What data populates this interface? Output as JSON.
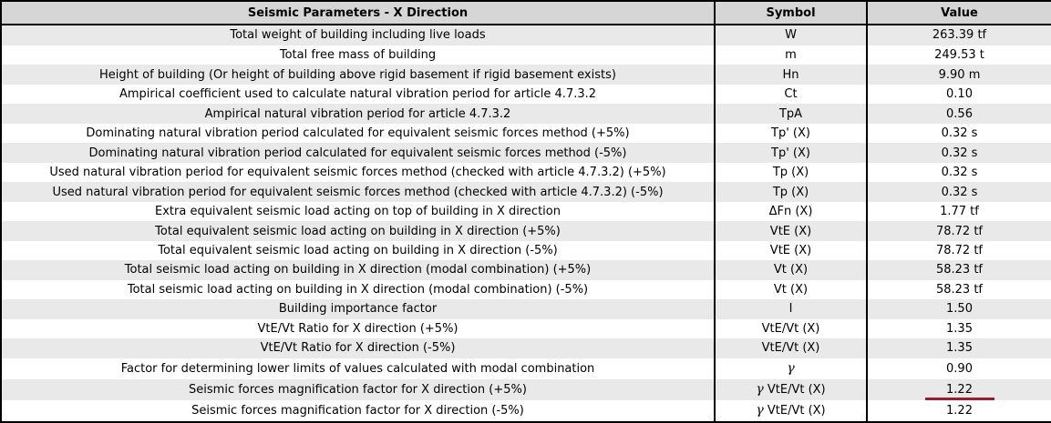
{
  "table": {
    "header": {
      "parameter": "Seismic Parameters - X Direction",
      "symbol": "Symbol",
      "value": "Value"
    },
    "rows": [
      {
        "parameter": "Total weight of building including live loads",
        "symbol": "W",
        "value": "263.39 tf",
        "value_underlined": false
      },
      {
        "parameter": "Total free mass of building",
        "symbol": "m",
        "value": "249.53 t",
        "value_underlined": false
      },
      {
        "parameter": "Height of building (Or height of building above rigid basement if rigid basement exists)",
        "symbol": "Hn",
        "value": "9.90 m",
        "value_underlined": false
      },
      {
        "parameter": "Ampirical coefficient used to calculate natural vibration period for article 4.7.3.2",
        "symbol": "Ct",
        "value": "0.10",
        "value_underlined": false
      },
      {
        "parameter": "Ampirical natural vibration period for article 4.7.3.2",
        "symbol": "TpA",
        "value": "0.56",
        "value_underlined": false
      },
      {
        "parameter": "Dominating natural vibration period calculated for equivalent seismic forces method (+5%)",
        "symbol": "Tp' (X)",
        "value": "0.32 s",
        "value_underlined": false
      },
      {
        "parameter": "Dominating natural vibration period calculated for equivalent seismic forces method (-5%)",
        "symbol": "Tp' (X)",
        "value": "0.32 s",
        "value_underlined": false
      },
      {
        "parameter": "Used natural vibration period for equivalent seismic forces method (checked with article 4.7.3.2) (+5%)",
        "symbol": "Tp (X)",
        "value": "0.32 s",
        "value_underlined": false
      },
      {
        "parameter": "Used natural vibration period for equivalent seismic forces method (checked with article 4.7.3.2) (-5%)",
        "symbol": "Tp (X)",
        "value": "0.32 s",
        "value_underlined": false
      },
      {
        "parameter": "Extra equivalent seismic load acting on top of building in X direction",
        "symbol": "ΔFn (X)",
        "value": "1.77 tf",
        "value_underlined": false
      },
      {
        "parameter": "Total equivalent seismic load acting on building in X direction (+5%)",
        "symbol": "VtE (X)",
        "value": "78.72 tf",
        "value_underlined": false
      },
      {
        "parameter": "Total equivalent seismic load acting on building in X direction (-5%)",
        "symbol": "VtE (X)",
        "value": "78.72 tf",
        "value_underlined": false
      },
      {
        "parameter": "Total seismic load acting on building in X direction (modal combination) (+5%)",
        "symbol": "Vt (X)",
        "value": "58.23 tf",
        "value_underlined": false
      },
      {
        "parameter": "Total seismic load acting on building in X direction (modal combination) (-5%)",
        "symbol": "Vt (X)",
        "value": "58.23 tf",
        "value_underlined": false
      },
      {
        "parameter": "Building importance factor",
        "symbol": "I",
        "value": "1.50",
        "value_underlined": false
      },
      {
        "parameter": "VtE/Vt Ratio for X direction (+5%)",
        "symbol": "VtE/Vt (X)",
        "value": "1.35",
        "value_underlined": false
      },
      {
        "parameter": "VtE/Vt Ratio for X direction (-5%)",
        "symbol": "VtE/Vt (X)",
        "value": "1.35",
        "value_underlined": false
      },
      {
        "parameter": "Factor for determining lower limits of values calculated with modal combination",
        "symbol": "γ",
        "value": "0.90",
        "value_underlined": false
      },
      {
        "parameter": "Seismic forces magnification factor for X direction (+5%)",
        "symbol": "γ VtE/Vt (X)",
        "value": "1.22",
        "value_underlined": true
      },
      {
        "parameter": "Seismic forces magnification factor for X direction (-5%)",
        "symbol": "γ VtE/Vt (X)",
        "value": "1.22",
        "value_underlined": false
      }
    ],
    "colors": {
      "header_bg": "#d6d6d6",
      "row_alt_bg": "#e9e9e9",
      "row_bg": "#ffffff",
      "border": "#000000",
      "annotation_underline": "#9b1a30"
    }
  }
}
